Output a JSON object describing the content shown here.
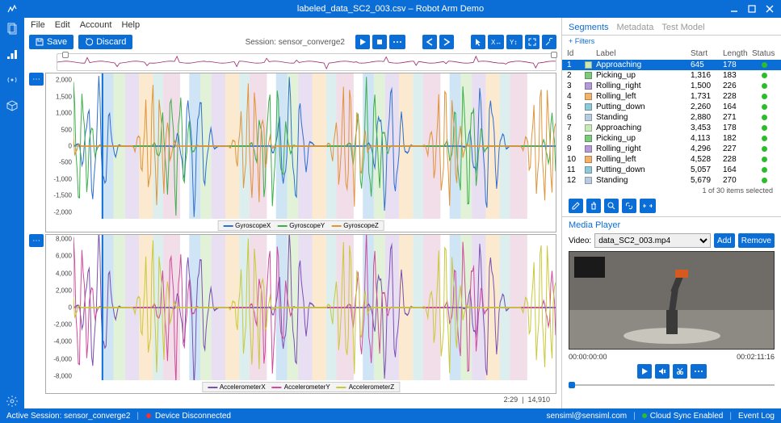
{
  "titlebar": {
    "title": "labeled_data_SC2_003.csv – Robot Arm Demo"
  },
  "menubar": [
    "File",
    "Edit",
    "Account",
    "Help"
  ],
  "toolbar": {
    "save": "Save",
    "discard": "Discard",
    "session_label": "Session:",
    "session_name": "sensor_converge2"
  },
  "overview": {
    "color": "#9c2a6b",
    "handle_left_pct": 1,
    "handle_right_pct": 99
  },
  "segments_highlight_colors": [
    "#a8cfef",
    "#c9e8b8",
    "#d7c5ea",
    "#f7d8a8",
    "#bfe0e0",
    "#e6c2d6"
  ],
  "chart1": {
    "ylabels": [
      2000,
      1500,
      1000,
      500,
      0,
      -500,
      -1000,
      -1500,
      -2000
    ],
    "ylim": [
      -2200,
      2200
    ],
    "series": [
      {
        "name": "GyroscopeX",
        "color": "#2e6fd1"
      },
      {
        "name": "GyroscopeY",
        "color": "#3bb04a"
      },
      {
        "name": "GyroscopeZ",
        "color": "#e0943b"
      }
    ]
  },
  "chart2": {
    "ylabels": [
      8000,
      6000,
      4000,
      2000,
      0,
      -2000,
      -4000,
      -6000,
      -8000
    ],
    "ylim": [
      -8500,
      8500
    ],
    "series": [
      {
        "name": "AccelerometerX",
        "color": "#7a4fb3"
      },
      {
        "name": "AccelerometerY",
        "color": "#d14a9c"
      },
      {
        "name": "AccelerometerZ",
        "color": "#c9c93b"
      }
    ]
  },
  "chart_footer": {
    "pos": "2:29",
    "total": "14,910"
  },
  "right_tabs": [
    "Segments",
    "Metadata",
    "Test Model"
  ],
  "filters_label": "+ Filters",
  "seg_columns": [
    "Id",
    "",
    "Label",
    "Start",
    "Length",
    "Status"
  ],
  "label_colors": {
    "Approaching": "#c9e8b8",
    "Picking_up": "#7fc97f",
    "Rolling_right": "#b49ad7",
    "Rolling_left": "#f1b26b",
    "Putting_down": "#8fc9d9",
    "Standing": "#b8cbe0"
  },
  "segments": [
    {
      "id": 1,
      "label": "Approaching",
      "start": "645",
      "length": "178"
    },
    {
      "id": 2,
      "label": "Picking_up",
      "start": "1,316",
      "length": "183"
    },
    {
      "id": 3,
      "label": "Rolling_right",
      "start": "1,500",
      "length": "226"
    },
    {
      "id": 4,
      "label": "Rolling_left",
      "start": "1,731",
      "length": "228"
    },
    {
      "id": 5,
      "label": "Putting_down",
      "start": "2,260",
      "length": "164"
    },
    {
      "id": 6,
      "label": "Standing",
      "start": "2,880",
      "length": "271"
    },
    {
      "id": 7,
      "label": "Approaching",
      "start": "3,453",
      "length": "178"
    },
    {
      "id": 8,
      "label": "Picking_up",
      "start": "4,113",
      "length": "182"
    },
    {
      "id": 9,
      "label": "Rolling_right",
      "start": "4,296",
      "length": "227"
    },
    {
      "id": 10,
      "label": "Rolling_left",
      "start": "4,528",
      "length": "228"
    },
    {
      "id": 11,
      "label": "Putting_down",
      "start": "5,057",
      "length": "164"
    },
    {
      "id": 12,
      "label": "Standing",
      "start": "5,679",
      "length": "270"
    }
  ],
  "seg_footer": "1 of 30 items selected",
  "media": {
    "title": "Media Player",
    "video_label": "Video:",
    "video_file": "data_SC2_003.mp4",
    "add": "Add",
    "remove": "Remove",
    "time_start": "00:00:00:00",
    "time_end": "00:02:11:16"
  },
  "statusbar": {
    "session": "Active Session:  sensor_converge2",
    "device": "Device Disconnected",
    "email": "sensiml@sensiml.com",
    "cloud": "Cloud Sync Enabled",
    "log": "Event Log"
  },
  "segment_regions_pct": [
    [
      6,
      8.3
    ],
    [
      8.3,
      10.7
    ],
    [
      10.7,
      13.6
    ],
    [
      13.6,
      16.5
    ],
    [
      16.5,
      18.6
    ],
    [
      18.6,
      22.1
    ],
    [
      24,
      26.3
    ],
    [
      26.3,
      28.6
    ],
    [
      28.6,
      31.5
    ],
    [
      31.5,
      34.4
    ],
    [
      34.4,
      36.5
    ],
    [
      36.5,
      40.1
    ],
    [
      42,
      44.3
    ],
    [
      44.3,
      46.6
    ],
    [
      46.6,
      49.5
    ],
    [
      49.5,
      52.4
    ],
    [
      52.4,
      54.5
    ],
    [
      54.5,
      58.1
    ],
    [
      60,
      62.3
    ],
    [
      62.3,
      64.6
    ],
    [
      64.6,
      67.5
    ],
    [
      67.5,
      70.4
    ],
    [
      70.4,
      72.5
    ],
    [
      72.5,
      76.1
    ],
    [
      78,
      80.3
    ],
    [
      80.3,
      82.6
    ],
    [
      82.6,
      85.5
    ],
    [
      85.5,
      88.4
    ],
    [
      88.4,
      90.5
    ],
    [
      90.5,
      94.1
    ]
  ]
}
